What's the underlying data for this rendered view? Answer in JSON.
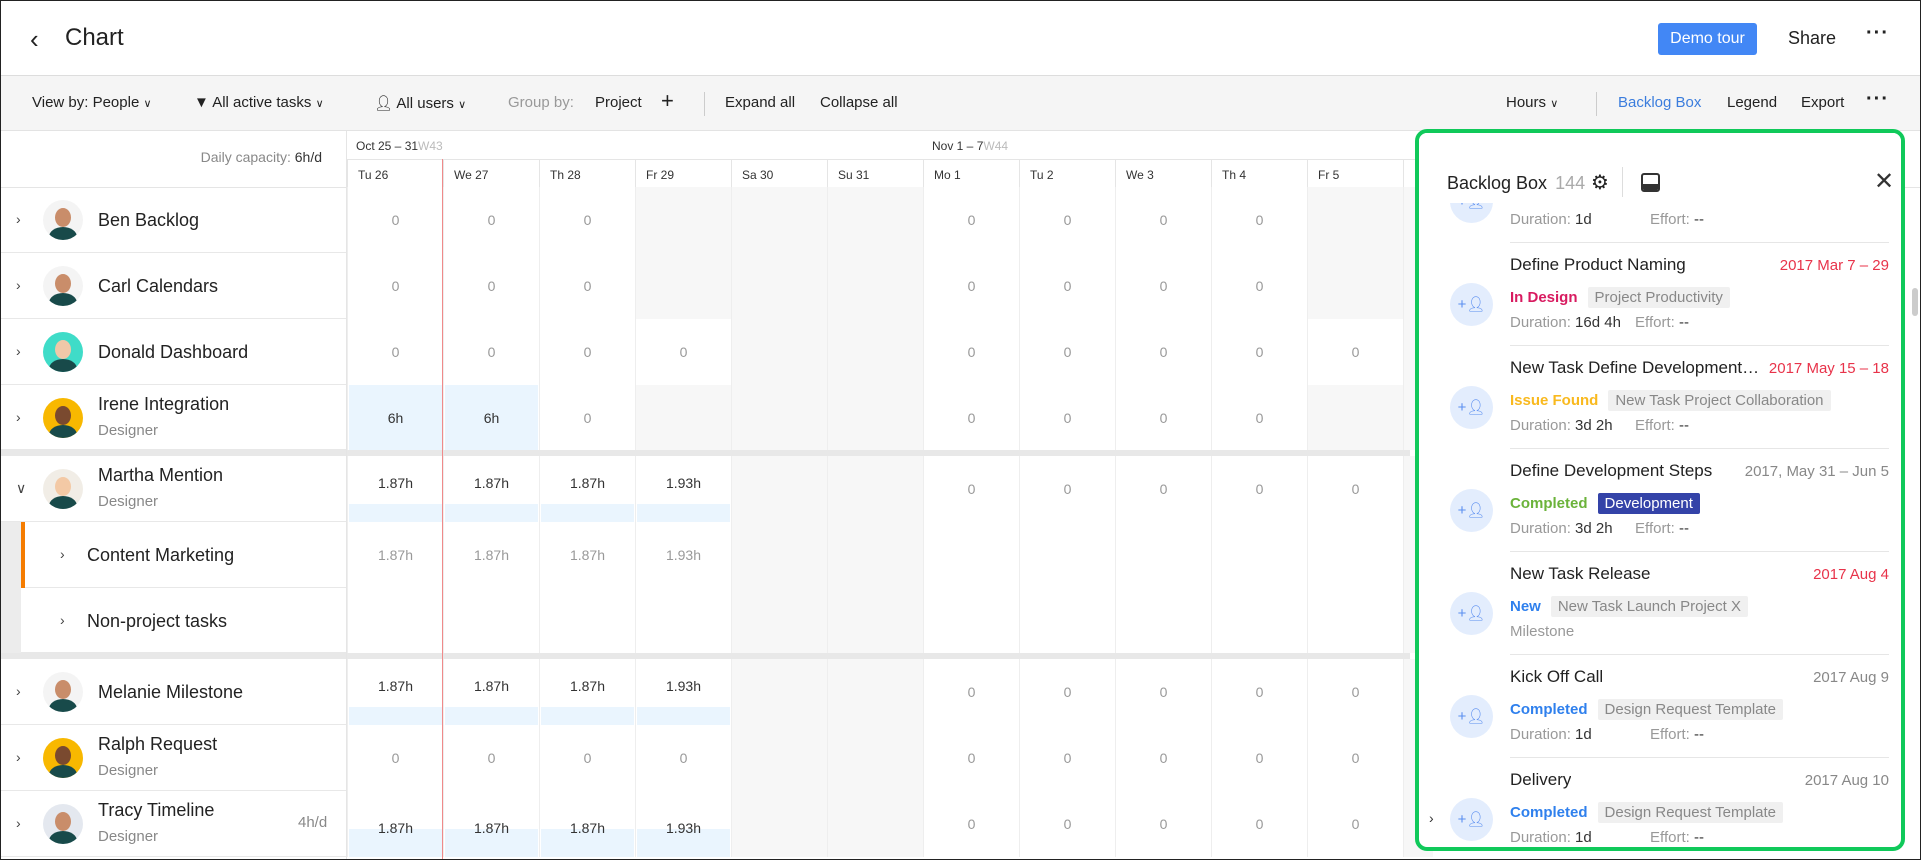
{
  "header": {
    "title": "Chart",
    "demo_tour": "Demo tour",
    "share": "Share"
  },
  "toolbar": {
    "view_by": "View by: People",
    "filter": "All active tasks",
    "users": "All users",
    "group_by_label": "Group by:",
    "group_by_value": "Project",
    "expand_all": "Expand all",
    "collapse_all": "Collapse all",
    "units": "Hours",
    "backlog_box": "Backlog Box",
    "legend": "Legend",
    "export": "Export",
    "accent": "#3b7ddd"
  },
  "grid": {
    "capacity_label": "Daily capacity:",
    "capacity_value": "6h/d",
    "weeks": [
      {
        "range": "Oct 25 – 31",
        "week": "W43"
      },
      {
        "range": "Nov 1 – 7",
        "week": "W44"
      }
    ],
    "days": [
      "Tu 26",
      "We 27",
      "Th 28",
      "Fr 29",
      "Sa 30",
      "Su 31",
      "Mo 1",
      "Tu 2",
      "We 3",
      "Th 4",
      "Fr 5"
    ],
    "today_day": "We 27",
    "rows": [
      {
        "name": "Ben Backlog",
        "role": "",
        "expanded": false,
        "avatar": "#f4f4f4",
        "cells": [
          "0",
          "0",
          "0",
          "",
          "",
          "",
          "0",
          "0",
          "0",
          "0",
          ""
        ]
      },
      {
        "name": "Carl Calendars",
        "role": "",
        "expanded": false,
        "avatar": "#f4f4f4",
        "cells": [
          "0",
          "0",
          "0",
          "",
          "",
          "",
          "0",
          "0",
          "0",
          "0",
          ""
        ]
      },
      {
        "name": "Donald Dashboard",
        "role": "",
        "expanded": false,
        "avatar": "#3fdcc8",
        "cells": [
          "0",
          "0",
          "0",
          "0",
          "",
          "",
          "0",
          "0",
          "0",
          "0",
          "0"
        ]
      },
      {
        "name": "Irene Integration",
        "role": "Designer",
        "expanded": false,
        "avatar": "#f8b800",
        "cells": [
          "6h",
          "6h",
          "0",
          "",
          "",
          "",
          "0",
          "0",
          "0",
          "0",
          ""
        ]
      },
      {
        "name": "Martha Mention",
        "role": "Designer",
        "expanded": true,
        "avatar": "#f1ede6",
        "cells": [
          "1.87h",
          "1.87h",
          "1.87h",
          "1.93h",
          "",
          "",
          "0",
          "0",
          "0",
          "0",
          "0"
        ]
      },
      {
        "name": "Content Marketing",
        "sub": true,
        "project_color": "#f57c00",
        "cells": [
          "1.87h",
          "1.87h",
          "1.87h",
          "1.93h",
          "",
          "",
          "",
          "",
          "",
          "",
          ""
        ]
      },
      {
        "name": "Non-project tasks",
        "sub": true,
        "cells": [
          "",
          "",
          "",
          "",
          "",
          "",
          "",
          "",
          "",
          "",
          ""
        ]
      },
      {
        "name": "Melanie Milestone",
        "role": "",
        "expanded": false,
        "avatar": "#f4f4f4",
        "cells": [
          "1.87h",
          "1.87h",
          "1.87h",
          "1.93h",
          "",
          "",
          "0",
          "0",
          "0",
          "0",
          "0"
        ]
      },
      {
        "name": "Ralph Request",
        "role": "Designer",
        "expanded": false,
        "avatar": "#f8b800",
        "cells": [
          "0",
          "0",
          "0",
          "0",
          "",
          "",
          "0",
          "0",
          "0",
          "0",
          "0"
        ]
      },
      {
        "name": "Tracy Timeline",
        "role": "Designer",
        "capacity": "4h/d",
        "expanded": false,
        "avatar": "#e4e8ef",
        "cells": [
          "1.87h",
          "1.87h",
          "1.87h",
          "1.93h",
          "",
          "",
          "0",
          "0",
          "0",
          "0",
          "0"
        ]
      }
    ]
  },
  "backlog": {
    "title": "Backlog Box",
    "count": "144",
    "border_color": "#10c95a",
    "duration_label": "Duration:",
    "effort_label": "Effort:",
    "items": [
      {
        "title": "",
        "date": "",
        "status": "",
        "duration": "1d",
        "effort": "--"
      },
      {
        "title": "Define Product Naming",
        "date": "2017 Mar 7 – 29",
        "date_color": "#e8334a",
        "status": "In Design",
        "status_color": "#d81b60",
        "project": "Project Productivity",
        "duration": "16d 4h",
        "effort": "--"
      },
      {
        "title": "New Task Define Development Steps",
        "date": "2017 May 15 – 18",
        "date_color": "#e8334a",
        "status": "Issue Found",
        "status_color": "#f9b91e",
        "project": "New Task Project Collaboration",
        "duration": "3d 2h",
        "effort": "--"
      },
      {
        "title": "Define Development Steps",
        "date": "2017, May 31 – Jun 5",
        "date_color": "#888888",
        "status": "Completed",
        "status_color": "#6bb33a",
        "project": "Development",
        "project_dark": true,
        "duration": "3d 2h",
        "effort": "--"
      },
      {
        "title": "New Task Release",
        "date": "2017 Aug 4",
        "date_color": "#e8334a",
        "status": "New",
        "status_color": "#2f80ed",
        "project": "New Task Launch Project X",
        "milestone": "Milestone"
      },
      {
        "title": "Kick Off Call",
        "date": "2017 Aug 9",
        "date_color": "#888888",
        "status": "Completed",
        "status_color": "#2f80ed",
        "project": "Design Request Template",
        "duration": "1d",
        "effort": "--"
      },
      {
        "title": "Delivery",
        "date": "2017 Aug 10",
        "date_color": "#888888",
        "status": "Completed",
        "status_color": "#2f80ed",
        "project": "Design Request Template",
        "duration": "1d",
        "effort": "--",
        "expandable": true
      }
    ]
  }
}
